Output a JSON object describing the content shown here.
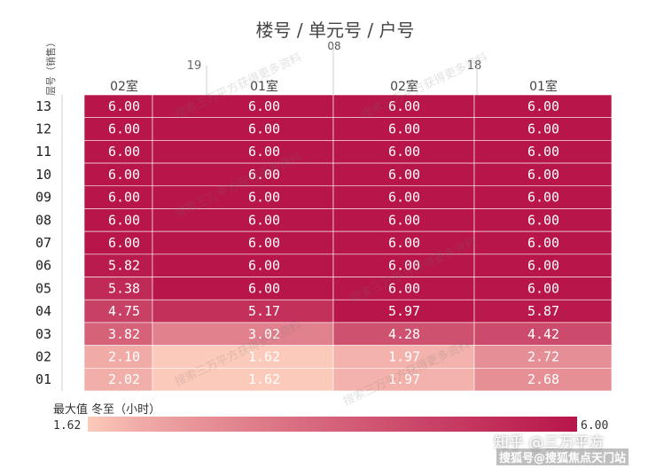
{
  "chart_data": {
    "type": "heatmap",
    "title": "楼号 / 单元号 / 户号",
    "y_axis_label": "层号（销售）",
    "building": "08",
    "units": [
      {
        "unit": "19",
        "rooms": [
          "02室",
          "01室"
        ]
      },
      {
        "unit": "18",
        "rooms": [
          "02室",
          "01室"
        ]
      }
    ],
    "columns": [
      "19-02室",
      "19-01室",
      "18-02室",
      "18-01室"
    ],
    "floors": [
      "13",
      "12",
      "11",
      "10",
      "09",
      "08",
      "07",
      "06",
      "05",
      "04",
      "03",
      "02",
      "01"
    ],
    "values": [
      [
        6.0,
        6.0,
        6.0,
        6.0
      ],
      [
        6.0,
        6.0,
        6.0,
        6.0
      ],
      [
        6.0,
        6.0,
        6.0,
        6.0
      ],
      [
        6.0,
        6.0,
        6.0,
        6.0
      ],
      [
        6.0,
        6.0,
        6.0,
        6.0
      ],
      [
        6.0,
        6.0,
        6.0,
        6.0
      ],
      [
        6.0,
        6.0,
        6.0,
        6.0
      ],
      [
        5.82,
        6.0,
        6.0,
        6.0
      ],
      [
        5.38,
        6.0,
        6.0,
        6.0
      ],
      [
        4.75,
        5.17,
        5.97,
        5.87
      ],
      [
        3.82,
        3.02,
        4.28,
        4.42
      ],
      [
        2.1,
        1.62,
        1.97,
        2.72
      ],
      [
        2.02,
        1.62,
        1.97,
        2.68
      ]
    ],
    "legend": {
      "title": "最大值 冬至（小时）",
      "min": 1.62,
      "max": 6.0,
      "min_label": "1.62",
      "max_label": "6.00",
      "color_min": "#fccaba",
      "color_max": "#b8154a"
    }
  },
  "watermark": {
    "text": "搜索三万平方获得更多资料",
    "brand_zhihu": "知乎 @三万平方",
    "brand_sohu": "搜狐号@搜狐焦点天门站"
  }
}
